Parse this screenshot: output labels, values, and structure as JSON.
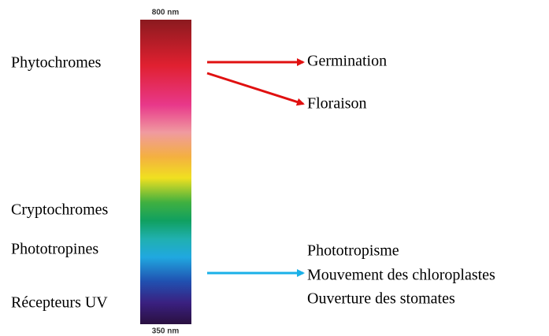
{
  "wavelengths": {
    "top": "800 nm",
    "bottom": "350 nm"
  },
  "photoreceptors": [
    "Phytochromes",
    "Cryptochromes",
    "Phototropines",
    "Récepteurs UV"
  ],
  "responses": [
    "Germination",
    "Floraison",
    "Phototropisme",
    "Mouvement des chloroplastes",
    "Ouverture des stomates"
  ]
}
